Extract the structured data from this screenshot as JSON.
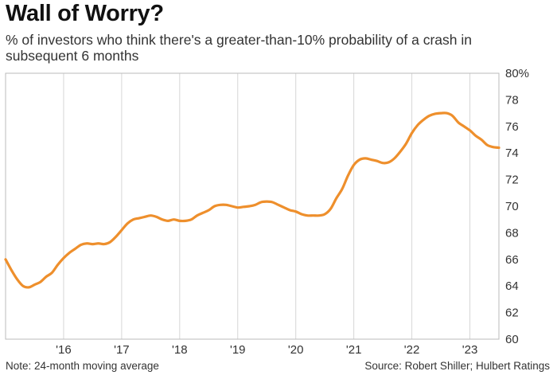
{
  "header": {
    "title": "Wall of Worry?",
    "subtitle": "% of investors who think there's a greater-than-10% probability of a crash in subsequent 6 months"
  },
  "footer": {
    "note": "Note: 24-month moving average",
    "source": "Source: Robert Shiller; Hulbert Ratings"
  },
  "colors": {
    "line": "#ee8f2c",
    "grid": "#d6d6d6",
    "frame": "#bbbbbb"
  },
  "chart_data": {
    "type": "line",
    "title": "Wall of Worry?",
    "subtitle": "% of investors who think there's a greater-than-10% probability of a crash in subsequent 6 months",
    "xlabel": "",
    "ylabel": "",
    "xlim": [
      2015.0,
      2023.5
    ],
    "ylim": [
      60,
      80
    ],
    "yticks": [
      60,
      62,
      64,
      66,
      68,
      70,
      72,
      74,
      76,
      78,
      80
    ],
    "ytick_labels": [
      "60",
      "62",
      "64",
      "66",
      "68",
      "70",
      "72",
      "74",
      "76",
      "78",
      "80%"
    ],
    "xticks": [
      2016,
      2017,
      2018,
      2019,
      2020,
      2021,
      2022,
      2023
    ],
    "xtick_labels": [
      "'16",
      "'17",
      "'18",
      "'19",
      "'20",
      "'21",
      "'22",
      "'23"
    ],
    "grid": {
      "vertical": true,
      "horizontal": false
    },
    "series": [
      {
        "x": [
          2015.0,
          2015.1,
          2015.2,
          2015.3,
          2015.4,
          2015.5,
          2015.6,
          2015.7,
          2015.8,
          2015.9,
          2016.0,
          2016.1,
          2016.2,
          2016.3,
          2016.4,
          2016.5,
          2016.6,
          2016.7,
          2016.8,
          2016.9,
          2017.0,
          2017.1,
          2017.2,
          2017.3,
          2017.4,
          2017.5,
          2017.6,
          2017.7,
          2017.8,
          2017.9,
          2018.0,
          2018.1,
          2018.2,
          2018.3,
          2018.4,
          2018.5,
          2018.6,
          2018.7,
          2018.8,
          2018.9,
          2019.0,
          2019.1,
          2019.2,
          2019.3,
          2019.4,
          2019.5,
          2019.6,
          2019.7,
          2019.8,
          2019.9,
          2020.0,
          2020.1,
          2020.2,
          2020.3,
          2020.4,
          2020.5,
          2020.6,
          2020.7,
          2020.8,
          2020.9,
          2021.0,
          2021.1,
          2021.2,
          2021.3,
          2021.4,
          2021.5,
          2021.6,
          2021.7,
          2021.8,
          2021.9,
          2022.0,
          2022.1,
          2022.2,
          2022.3,
          2022.4,
          2022.5,
          2022.6,
          2022.7,
          2022.8,
          2022.9,
          2023.0,
          2023.1,
          2023.2,
          2023.3,
          2023.4,
          2023.5
        ],
        "values": [
          66.0,
          65.2,
          64.5,
          64.0,
          63.9,
          64.1,
          64.3,
          64.7,
          65.0,
          65.6,
          66.1,
          66.5,
          66.8,
          67.1,
          67.2,
          67.15,
          67.2,
          67.15,
          67.3,
          67.7,
          68.2,
          68.7,
          69.0,
          69.1,
          69.2,
          69.3,
          69.2,
          69.0,
          68.9,
          69.0,
          68.9,
          68.9,
          69.0,
          69.3,
          69.5,
          69.7,
          70.0,
          70.1,
          70.1,
          70.0,
          69.9,
          69.95,
          70.0,
          70.1,
          70.3,
          70.35,
          70.3,
          70.1,
          69.9,
          69.7,
          69.6,
          69.4,
          69.3,
          69.3,
          69.3,
          69.4,
          69.8,
          70.6,
          71.3,
          72.3,
          73.1,
          73.5,
          73.6,
          73.5,
          73.4,
          73.25,
          73.3,
          73.6,
          74.1,
          74.7,
          75.5,
          76.1,
          76.5,
          76.8,
          76.95,
          77.0,
          77.0,
          76.8,
          76.3,
          76.0,
          75.7,
          75.3,
          75.0,
          74.6,
          74.45,
          74.4
        ]
      }
    ]
  }
}
